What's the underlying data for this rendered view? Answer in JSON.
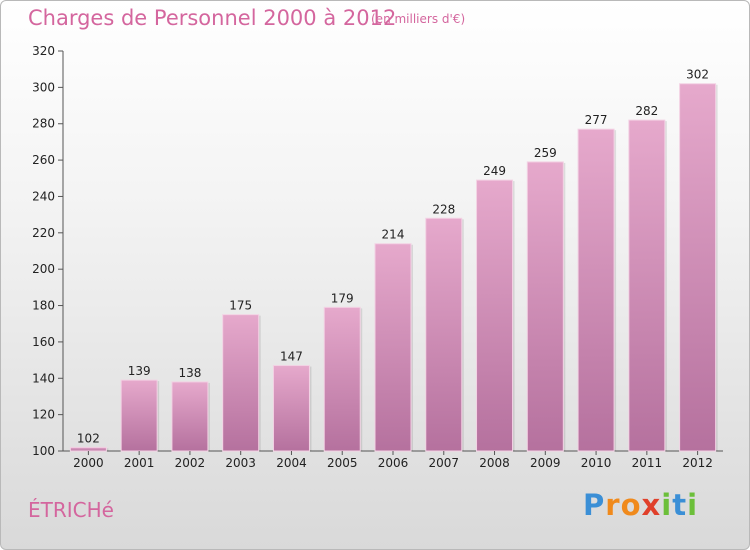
{
  "title": "Charges de Personnel 2000 à 2012",
  "unit_note": "(en milliers d'€)",
  "town": "ÉTRICHé",
  "logo": {
    "text": "Proxiti",
    "letters": [
      "P",
      "r",
      "o",
      "x",
      "i",
      "t",
      "i"
    ],
    "colors": [
      "#3b8fd6",
      "#f08a1c",
      "#f08a1c",
      "#e0402b",
      "#6cbf3a",
      "#3b8fd6",
      "#6cbf3a"
    ]
  },
  "colors": {
    "accent": "#d4669e",
    "bar_top": "#e6a9cc",
    "bar_bottom": "#b5719e"
  },
  "chart_data": {
    "type": "bar",
    "title": "Charges de Personnel 2000 à 2012",
    "xlabel": "",
    "ylabel": "",
    "categories": [
      "2000",
      "2001",
      "2002",
      "2003",
      "2004",
      "2005",
      "2006",
      "2007",
      "2008",
      "2009",
      "2010",
      "2011",
      "2012"
    ],
    "values": [
      102,
      139,
      138,
      175,
      147,
      179,
      214,
      228,
      249,
      259,
      277,
      282,
      302
    ],
    "ylim": [
      100,
      320
    ],
    "yticks": [
      100,
      120,
      140,
      160,
      180,
      200,
      220,
      240,
      260,
      280,
      300,
      320
    ],
    "grid": false,
    "legend": "none"
  }
}
